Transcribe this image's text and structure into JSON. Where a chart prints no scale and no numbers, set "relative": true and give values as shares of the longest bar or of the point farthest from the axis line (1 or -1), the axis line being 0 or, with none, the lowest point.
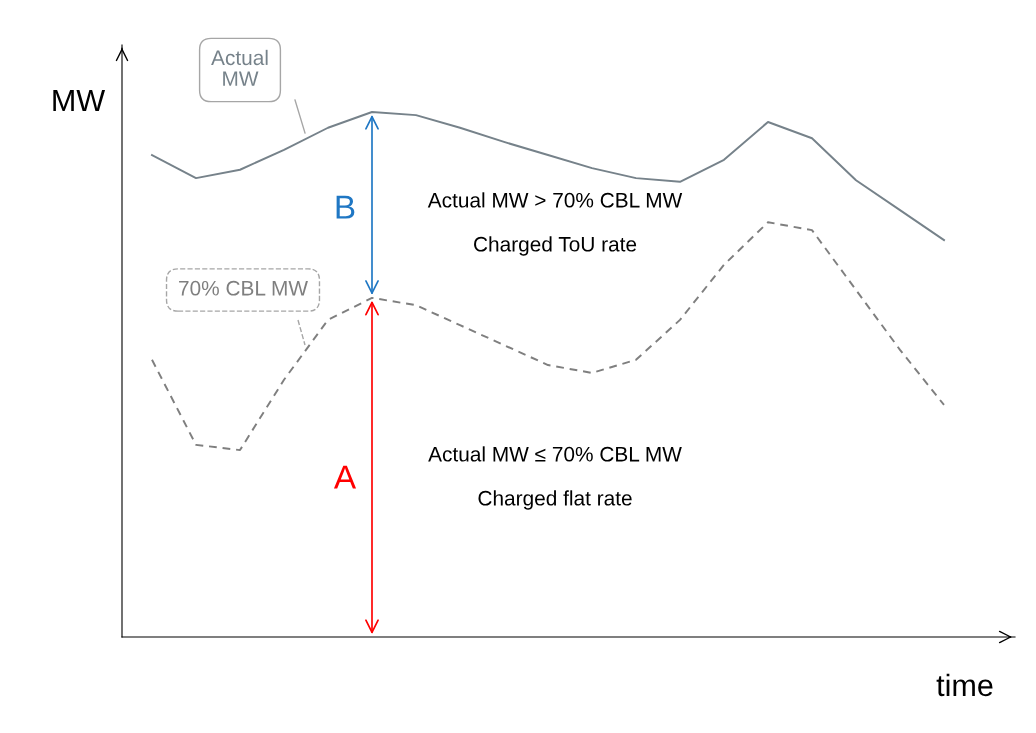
{
  "chart_data": {
    "type": "line",
    "relative": true,
    "xlabel": "time",
    "ylabel": "MW",
    "categories": [
      null,
      null,
      null,
      null,
      null,
      null,
      null,
      null,
      null,
      null,
      null,
      null,
      null,
      null,
      null,
      null,
      null,
      null,
      null
    ],
    "series": [
      {
        "name": "Actual MW",
        "color": "#76828a",
        "line_style": "solid",
        "values": [
          0.918,
          0.874,
          0.89,
          0.928,
          0.97,
          1.0,
          0.994,
          0.97,
          0.943,
          0.918,
          0.893,
          0.874,
          0.867,
          0.909,
          0.981,
          0.95,
          0.87,
          0.813,
          0.756
        ]
      },
      {
        "name": "70% CBL MW",
        "color": "#7f7f7f",
        "line_style": "dashed",
        "values": [
          0.528,
          0.366,
          0.356,
          0.49,
          0.604,
          0.646,
          0.632,
          0.594,
          0.556,
          0.518,
          0.503,
          0.528,
          0.604,
          0.709,
          0.79,
          0.775,
          0.661,
          0.547,
          0.442
        ]
      }
    ],
    "annotations": [
      "B",
      "A",
      "Actual MW > 70% CBL MW",
      "Charged ToU rate",
      "Actual MW ≤ 70% CBL MW",
      "Charged flat rate"
    ],
    "grid": false,
    "legend": false,
    "marker": "none"
  }
}
